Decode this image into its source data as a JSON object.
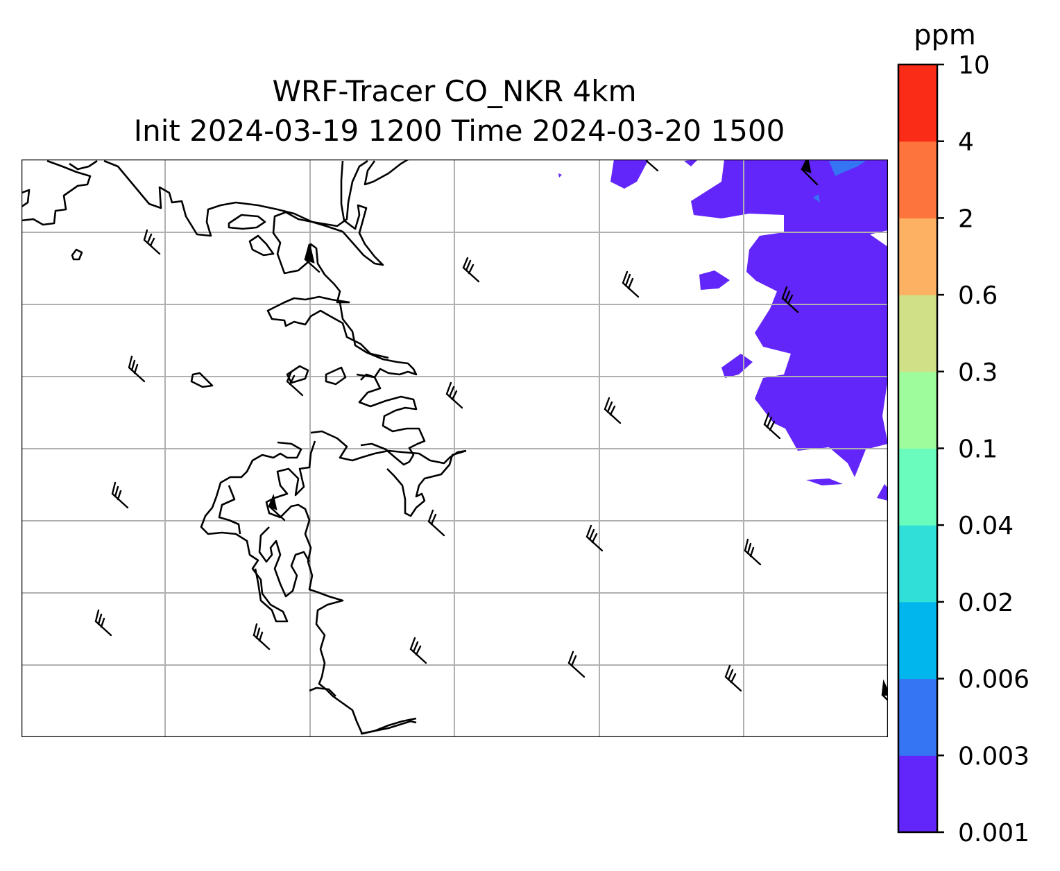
{
  "title": {
    "line1": "WRF-Tracer CO_NKR 4km",
    "line2": "Init 2024-03-19 1200 Time 2024-03-20 1500"
  },
  "colorbar": {
    "unit": "ppm",
    "levels": [
      "0.001",
      "0.003",
      "0.006",
      "0.02",
      "0.04",
      "0.1",
      "0.3",
      "0.6",
      "2",
      "4",
      "10"
    ],
    "colors": [
      "#6226fa",
      "#3574f2",
      "#01b6ec",
      "#30e0d8",
      "#6afcbc",
      "#9efc9c",
      "#d0e086",
      "#fdb163",
      "#fd743d",
      "#fb2c17"
    ]
  },
  "map": {
    "gridlines": true,
    "gridline_color": "#b0b0b0",
    "coastline_color": "#000000",
    "plume_level": "0.001",
    "plume_peak_level": "0.003",
    "wind_barbs": "northwesterly"
  }
}
